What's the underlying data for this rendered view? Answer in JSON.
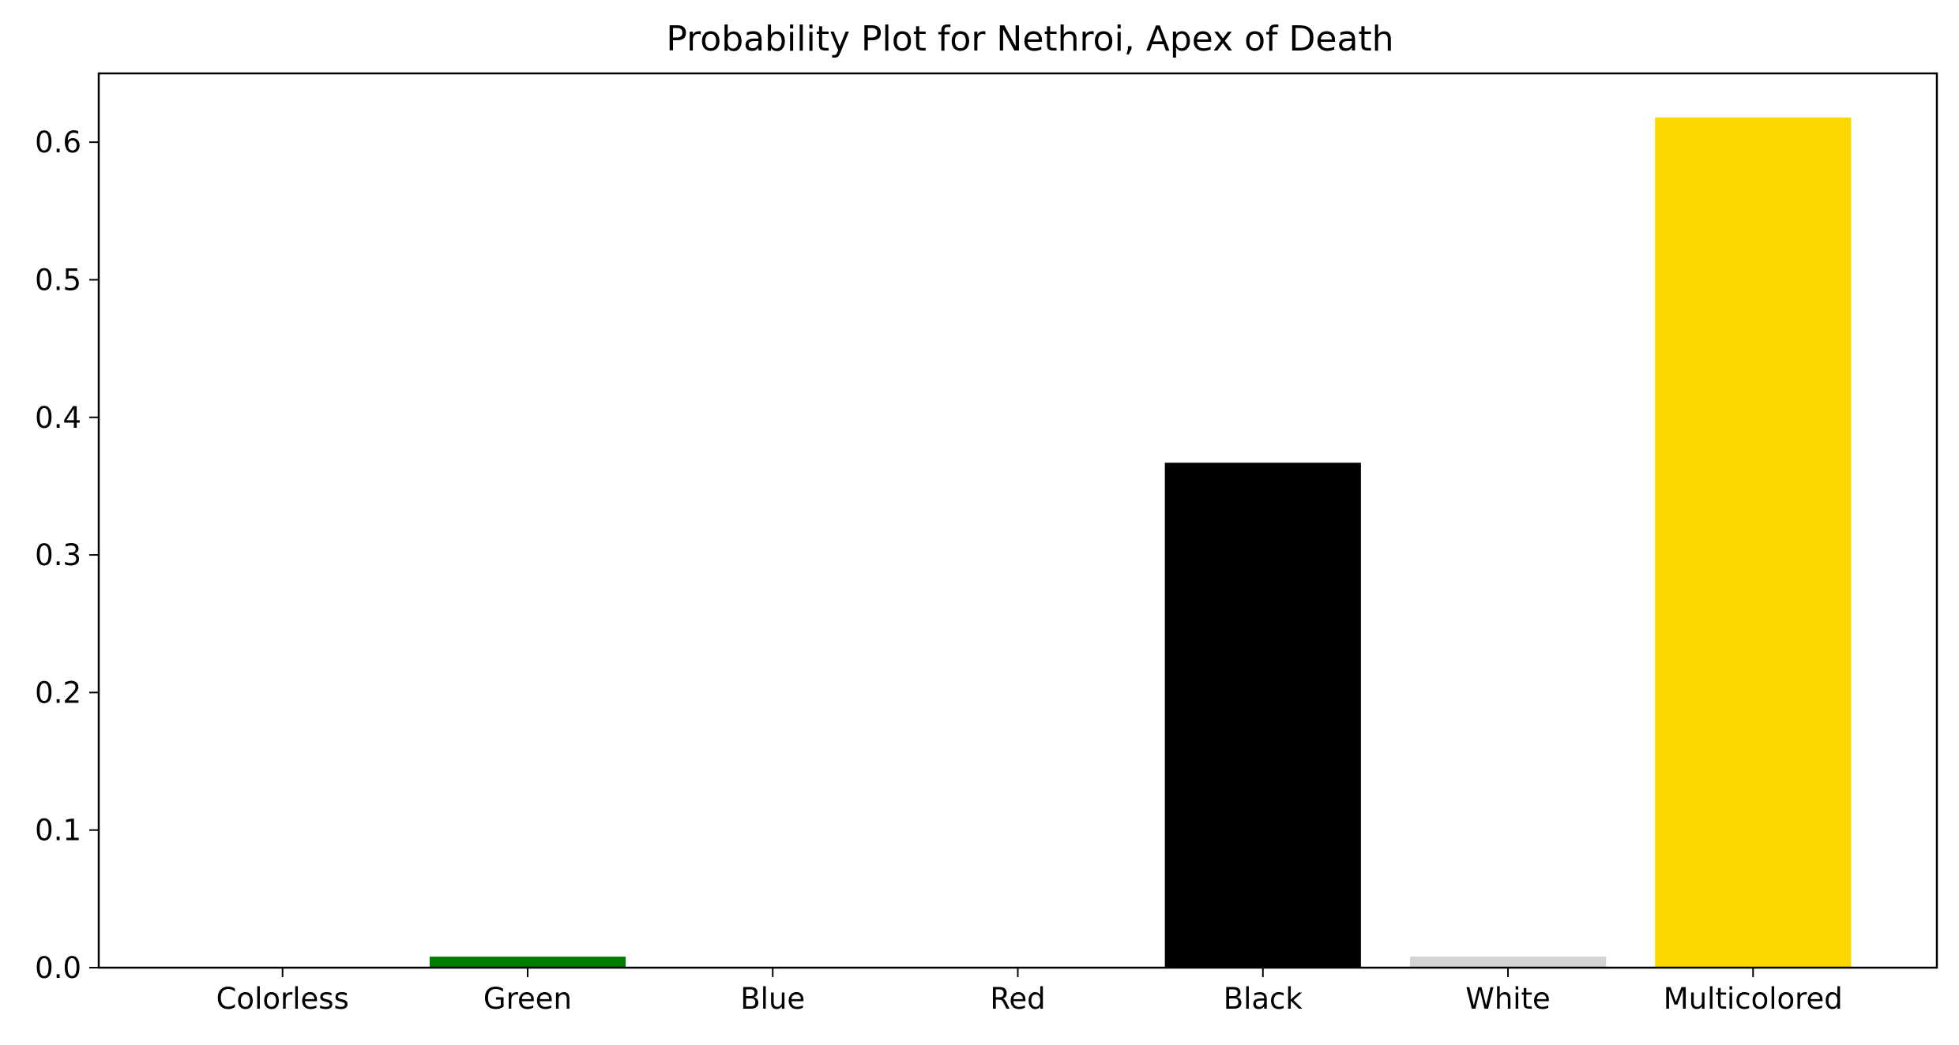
{
  "chart_data": {
    "type": "bar",
    "title": "Probability Plot for Nethroi, Apex of Death",
    "xlabel": "",
    "ylabel": "",
    "categories": [
      "Colorless",
      "Green",
      "Blue",
      "Red",
      "Black",
      "White",
      "Multicolored"
    ],
    "values": [
      0.0,
      0.008,
      0.0,
      0.0,
      0.367,
      0.008,
      0.618
    ],
    "colors": [
      "#808080",
      "#008000",
      "#0000ff",
      "#ff0000",
      "#000000",
      "#d3d3d3",
      "#ffd700"
    ],
    "ylim": [
      0,
      0.65
    ],
    "yticks": [
      "0.0",
      "0.1",
      "0.2",
      "0.3",
      "0.4",
      "0.5",
      "0.6"
    ],
    "grid": false,
    "legend": "none"
  }
}
